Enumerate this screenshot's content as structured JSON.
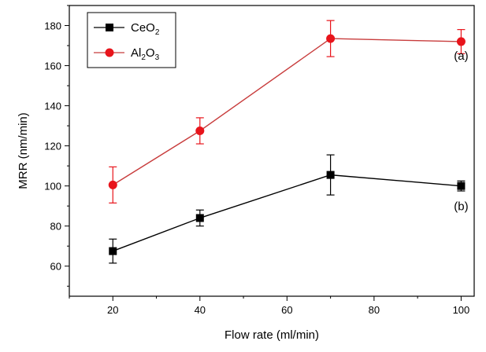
{
  "chart_data": {
    "type": "line",
    "title": "",
    "xlabel": "Flow rate (ml/min)",
    "ylabel": "MRR (nm/min)",
    "xlim": [
      10,
      103
    ],
    "ylim": [
      45,
      190
    ],
    "xticks": [
      20,
      40,
      60,
      80,
      100
    ],
    "yticks": [
      60,
      80,
      100,
      120,
      140,
      160,
      180
    ],
    "grid": false,
    "legend_position": "top-left",
    "x": [
      20,
      40,
      70,
      100
    ],
    "series": [
      {
        "name": "CeO2",
        "legend": {
          "base": "CeO",
          "sub": "2"
        },
        "color": "#000000",
        "marker": "square",
        "values": [
          67.5,
          84,
          105.5,
          100
        ],
        "errors": [
          6,
          4,
          10,
          2.5
        ]
      },
      {
        "name": "Al2O3",
        "legend": {
          "base1": "Al",
          "sub1": "2",
          "base2": "O",
          "sub2": "3"
        },
        "color": "#e8141b",
        "line_color": "#c83c3c",
        "marker": "circle",
        "values": [
          100.5,
          127.5,
          173.5,
          172
        ],
        "errors": [
          9,
          6.5,
          9,
          6
        ]
      }
    ],
    "annotations": [
      {
        "text": "(a)",
        "x": 100,
        "y": 163
      },
      {
        "text": "(b)",
        "x": 100,
        "y": 88
      }
    ]
  }
}
